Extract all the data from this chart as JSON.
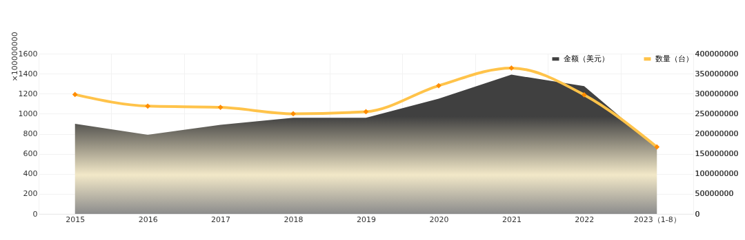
{
  "chart_data": {
    "type": "area",
    "ylabel": "×100000000",
    "categories": [
      "2015",
      "2016",
      "2017",
      "2018",
      "2019",
      "2020",
      "2021",
      "2022",
      "2023（1-8）"
    ],
    "series": [
      {
        "name": "金额（美元）",
        "color": "#404040",
        "values": [
          900,
          790,
          890,
          960,
          960,
          1150,
          1390,
          1275,
          660
        ]
      },
      {
        "name": "数量（台）",
        "type": "line",
        "axis": "y2",
        "marker": "diamond",
        "color": "#ffc34a",
        "values": [
          298000000,
          269000000,
          266000000,
          250000000,
          255000000,
          320000000,
          364000000,
          297000000,
          167000000
        ]
      }
    ],
    "ylim": [
      0,
      1600
    ],
    "yticks": [
      0,
      200,
      400,
      600,
      800,
      1000,
      1200,
      1400,
      1600
    ],
    "y2lim": [
      0,
      400000000
    ],
    "y2ticks": [
      0,
      50000000,
      100000000,
      150000000,
      200000000,
      250000000,
      300000000,
      350000000,
      400000000
    ],
    "grid": true,
    "legend": "top right",
    "line_style": "solid"
  }
}
